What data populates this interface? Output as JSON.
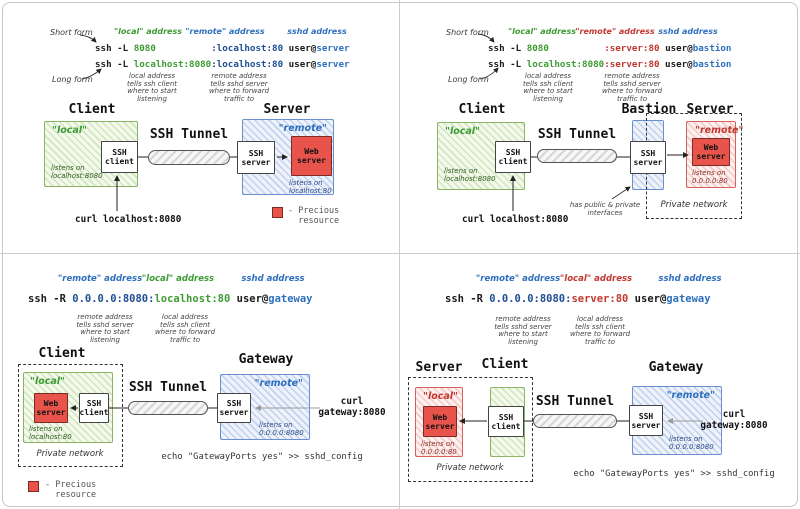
{
  "title": "SSH tunnel local and remote port forwarding diagrams",
  "colors": {
    "local_green": "#3e9b33",
    "remote_navy": "#1d4d93",
    "remote_red": "#c23730",
    "sshd_blue": "#2e6fbe",
    "resource_red": "#e8544b"
  },
  "legend": {
    "swatch": "precious-resource-red-square",
    "text": "- Precious\n  resource"
  },
  "shared": {
    "ssh_client": "SSH\nclient",
    "ssh_server": "SSH\nserver",
    "web_server": "Web\nserver",
    "tunnel_label": "SSH Tunnel",
    "private_network": "Private network",
    "echo_line": "echo \"GatewayPorts yes\" >> sshd_config"
  },
  "quadrants": {
    "tl": {
      "form_short": "Short form",
      "form_long": "Long form",
      "addr_labels": [
        "\"local\" address",
        "\"remote\" address",
        "sshd address"
      ],
      "cmd1": [
        {
          "t": "ssh -L ",
          "c": "k"
        },
        {
          "t": "8080",
          "c": "g"
        },
        {
          "t": "          ",
          "c": "k"
        },
        {
          "t": ":localhost:80",
          "c": "n"
        },
        {
          "t": " user@",
          "c": "k"
        },
        {
          "t": "server",
          "c": "b"
        }
      ],
      "cmd2": [
        {
          "t": "ssh -L ",
          "c": "k"
        },
        {
          "t": "localhost:8080",
          "c": "g"
        },
        {
          "t": ":localhost:80",
          "c": "n"
        },
        {
          "t": " user@",
          "c": "k"
        },
        {
          "t": "server",
          "c": "b"
        }
      ],
      "note_local": "local address\ntells ssh client\nwhere to start\nlistening",
      "note_remote": "remote address\ntells sshd server\nwhere to forward\ntraffic to",
      "headings": [
        "Client",
        "Server"
      ],
      "client_tag": "\"local\"",
      "client_listens": "listens on\nlocalhost:8080",
      "server_tag": "\"remote\"",
      "server_listens": "listens on\nlocalhost:80",
      "curl": "curl localhost:8080"
    },
    "tr": {
      "form_short": "Short form",
      "form_long": "Long form",
      "addr_labels": [
        "\"local\" address",
        "\"remote\" address",
        "sshd address"
      ],
      "cmd1": [
        {
          "t": "ssh -L ",
          "c": "k"
        },
        {
          "t": "8080",
          "c": "g"
        },
        {
          "t": "          ",
          "c": "k"
        },
        {
          "t": ":server:80",
          "c": "r"
        },
        {
          "t": " user@",
          "c": "k"
        },
        {
          "t": "bastion",
          "c": "b"
        }
      ],
      "cmd2": [
        {
          "t": "ssh -L ",
          "c": "k"
        },
        {
          "t": "localhost:8080",
          "c": "g"
        },
        {
          "t": ":server:80",
          "c": "r"
        },
        {
          "t": " user@",
          "c": "k"
        },
        {
          "t": "bastion",
          "c": "b"
        }
      ],
      "note_local": "local address\ntells ssh client\nwhere to start\nlistening",
      "note_remote": "remote address\ntells sshd server\nwhere to forward\ntraffic to",
      "headings": [
        "Client",
        "Bastion",
        "Server"
      ],
      "client_tag": "\"local\"",
      "client_listens": "listens on\nlocalhost:8080",
      "server_tag": "\"remote\"",
      "server_listens": "listens on\n0.0.0.0:80",
      "bastion_note": "has public & private\ninterfaces",
      "curl": "curl localhost:8080"
    },
    "bl": {
      "addr_labels": [
        "\"remote\" address",
        "\"local\" address",
        "sshd address"
      ],
      "cmd": [
        {
          "t": "ssh -R ",
          "c": "k"
        },
        {
          "t": "0.0.0.0:8080:",
          "c": "n"
        },
        {
          "t": "localhost:80",
          "c": "g"
        },
        {
          "t": " user@",
          "c": "k"
        },
        {
          "t": "gateway",
          "c": "b"
        }
      ],
      "note_remote": "remote address\ntells sshd server\nwhere to start\nlistening",
      "note_local": "local address\ntells ssh client\nwhere to forward\ntraffic to",
      "headings": [
        "Client",
        "Gateway"
      ],
      "client_tag": "\"local\"",
      "client_listens": "listens on\nlocalhost:80",
      "gateway_tag": "\"remote\"",
      "gateway_listens": "listens on\n0.0.0.0:8080",
      "curl": "curl\ngateway:8080"
    },
    "br": {
      "addr_labels": [
        "\"remote\" address",
        "\"local\" address",
        "sshd address"
      ],
      "cmd": [
        {
          "t": "ssh -R ",
          "c": "k"
        },
        {
          "t": "0.0.0.0:8080:",
          "c": "n"
        },
        {
          "t": "server:80",
          "c": "r"
        },
        {
          "t": " user@",
          "c": "k"
        },
        {
          "t": "gateway",
          "c": "b"
        }
      ],
      "note_remote": "remote address\ntells sshd server\nwhere to start\nlistening",
      "note_local": "local address\ntells ssh client\nwhere to forward\ntraffic to",
      "headings": [
        "Server",
        "Client",
        "Gateway"
      ],
      "server_tag": "\"local\"",
      "server_listens": "listens on\n0.0.0.0:80",
      "gateway_tag": "\"remote\"",
      "gateway_listens": "listens on\n0.0.0.0:8080",
      "curl": "curl\ngateway:8080"
    }
  }
}
